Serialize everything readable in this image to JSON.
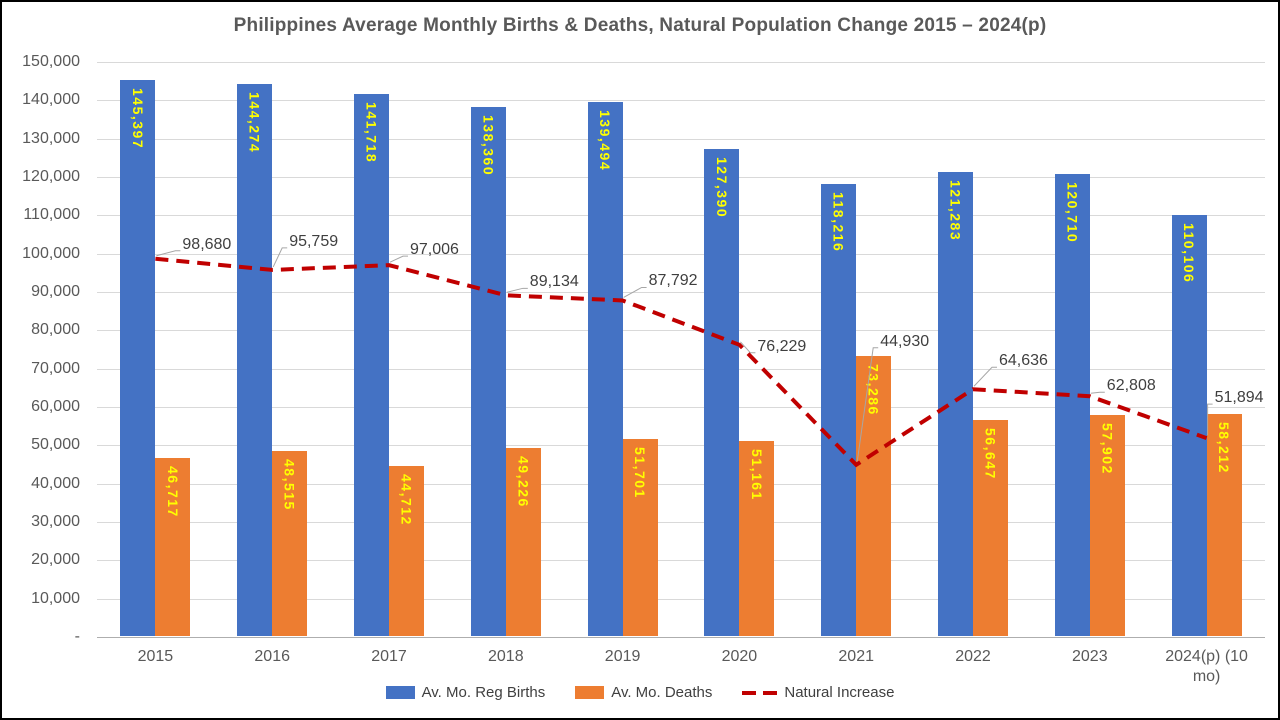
{
  "chart_data": {
    "type": "bar",
    "title": "Philippines Average Monthly Births & Deaths, Natural Population Change 2015 – 2024(p)",
    "categories": [
      "2015",
      "2016",
      "2017",
      "2018",
      "2019",
      "2020",
      "2021",
      "2022",
      "2023",
      "2024(p) (10 mo)"
    ],
    "series": [
      {
        "name": "Av. Mo. Reg Births",
        "render": "bar",
        "color": "#4472C4",
        "label_color": "#FFFF00",
        "values": [
          145397,
          144274,
          141718,
          138360,
          139494,
          127390,
          118216,
          121283,
          120710,
          110106
        ],
        "labels": [
          "145,397",
          "144,274",
          "141,718",
          "138,360",
          "139,494",
          "127,390",
          "118,216",
          "121,283",
          "120,710",
          "110,106"
        ]
      },
      {
        "name": "Av. Mo. Deaths",
        "render": "bar",
        "color": "#ED7D31",
        "label_color": "#FFFF00",
        "values": [
          46717,
          48515,
          44712,
          49226,
          51701,
          51161,
          73286,
          56647,
          57902,
          58212
        ],
        "labels": [
          "46,717",
          "48,515",
          "44,712",
          "49,226",
          "51,701",
          "51,161",
          "73,286",
          "56,647",
          "57,902",
          "58,212"
        ]
      },
      {
        "name": "Natural Increase",
        "render": "dashed-line",
        "color": "#C00000",
        "label_text_color": "#3F3F3F",
        "values": [
          98680,
          95759,
          97006,
          89134,
          87792,
          76229,
          44930,
          64636,
          62808,
          51894
        ],
        "labels": [
          "98,680",
          "95,759",
          "97,006",
          "89,134",
          "87,792",
          "76,229",
          "44,930",
          "64,636",
          "62,808",
          "51,894"
        ]
      }
    ],
    "ylim": [
      0,
      150000
    ],
    "ytick_step": 10000,
    "zero_tick_label": "-",
    "grid": true,
    "legend_position": "bottom",
    "colors": {
      "gridline": "#D9D9D9",
      "axis_line": "#AEAEAE",
      "tick_text": "#595959",
      "title_text": "#595959",
      "leader_line": "#A6A6A6"
    }
  }
}
